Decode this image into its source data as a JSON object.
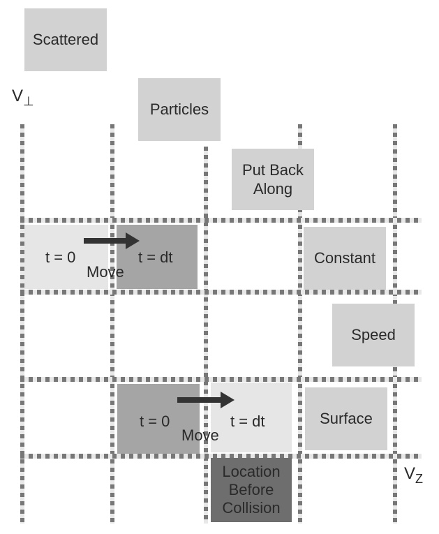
{
  "colors": {
    "light_box": "#d2d2d2",
    "lighter_box": "#e6e6e6",
    "medium_box": "#a5a5a5",
    "dark_box": "#6e6e6e",
    "grid": "#777777",
    "arrow": "#333333"
  },
  "axes": {
    "v_perp_main": "V",
    "v_perp_sub": "⊥",
    "v_z_main": "V",
    "v_z_sub": "Z"
  },
  "labels": {
    "scattered": "Scattered",
    "particles": "Particles",
    "put_back_along_1": "Put Back",
    "put_back_along_2": "Along",
    "constant": "Constant",
    "speed": "Speed",
    "surface": "Surface",
    "location_1": "Location",
    "location_2": "Before",
    "location_3": "Collision"
  },
  "upper_move": {
    "t0": "t = 0",
    "tdt": "t = dt",
    "move": "Move"
  },
  "lower_move": {
    "t0": "t = 0",
    "tdt": "t = dt",
    "move": "Move"
  }
}
